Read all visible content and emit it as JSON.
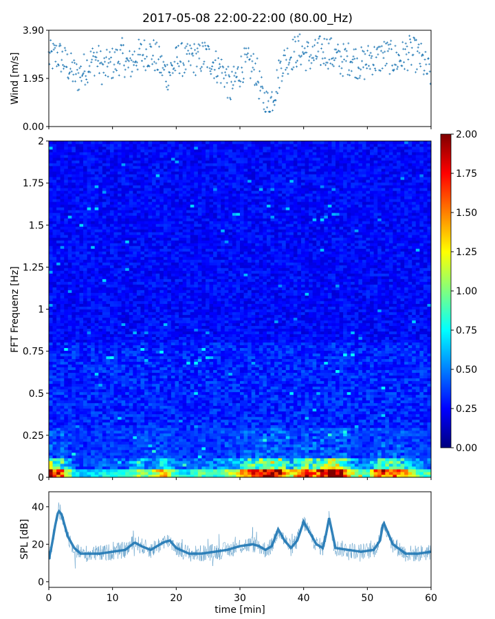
{
  "title": "2017-05-08 22:00-22:00 (80.00_Hz)",
  "chart_data": [
    {
      "id": "wind",
      "type": "scatter",
      "ylabel": "Wind [m/s]",
      "ylim": [
        0.0,
        3.9
      ],
      "yticks": [
        0.0,
        1.95,
        3.9
      ],
      "ytick_labels": [
        "0.00",
        "1.95",
        "3.90"
      ],
      "xlim": [
        0,
        60
      ],
      "marker": "+",
      "color": "#1f77b4",
      "series": [
        {
          "x": [
            0.5,
            1.5,
            2.5,
            3.5,
            4.5,
            5.5,
            6.5,
            7.5,
            8.5,
            9.5,
            10.5,
            11.5,
            12.5,
            13.5,
            14.5,
            15.5,
            16.5,
            17.5,
            18.5,
            19.5,
            20.5,
            21.5,
            22.5,
            23.5,
            24.5,
            25.5,
            26.5,
            27.5,
            28.5,
            29.5,
            30.5,
            31.5,
            32.5,
            33.5,
            34.5,
            35.5,
            36.5,
            37.5,
            38.5,
            39.5,
            40.5,
            41.5,
            42.5,
            43.5,
            44.5,
            45.5,
            46.5,
            47.5,
            48.5,
            49.5,
            50.5,
            51.5,
            52.5,
            53.5,
            54.5,
            55.5,
            56.5,
            57.5,
            58.5,
            59.5
          ],
          "y": [
            2.8,
            2.9,
            2.6,
            2.3,
            2.0,
            2.3,
            2.6,
            2.8,
            2.3,
            2.5,
            2.6,
            2.9,
            2.4,
            2.8,
            2.9,
            3.0,
            2.9,
            2.5,
            2.1,
            2.4,
            2.8,
            2.6,
            2.8,
            2.7,
            2.9,
            2.7,
            2.4,
            2.2,
            1.5,
            2.0,
            2.5,
            2.5,
            2.3,
            1.2,
            0.8,
            1.5,
            2.5,
            2.8,
            3.0,
            3.1,
            2.9,
            2.8,
            3.0,
            3.1,
            2.9,
            2.7,
            2.7,
            2.8,
            2.6,
            2.5,
            2.8,
            2.7,
            2.9,
            2.8,
            2.7,
            2.8,
            3.0,
            2.9,
            2.7,
            2.2
          ]
        }
      ]
    },
    {
      "id": "spectrogram",
      "type": "heatmap",
      "ylabel": "FFT Frequenz [Hz]",
      "ylim": [
        0,
        2
      ],
      "yticks": [
        0,
        0.25,
        0.5,
        0.75,
        1,
        1.25,
        1.5,
        1.75,
        2
      ],
      "ytick_labels": [
        "0",
        "0.25",
        "0.5",
        "0.75",
        "1",
        "1.25",
        "1.5",
        "1.75",
        "2"
      ],
      "xlim": [
        0,
        60
      ],
      "colormap": "jet",
      "colorbar": {
        "range": [
          0.0,
          2.0
        ],
        "ticks": [
          0.0,
          0.25,
          0.5,
          0.75,
          1.0,
          1.25,
          1.5,
          1.75,
          2.0
        ],
        "tick_labels": [
          "0.00",
          "0.25",
          "0.50",
          "0.75",
          "1.00",
          "1.25",
          "1.50",
          "1.75",
          "2.00"
        ]
      },
      "typical_level": 0.25,
      "band_intensity_time_min": [
        0,
        2,
        4,
        6,
        8,
        10,
        12,
        14,
        16,
        18,
        20,
        22,
        24,
        26,
        28,
        30,
        32,
        34,
        36,
        38,
        40,
        42,
        44,
        46,
        48,
        50,
        52,
        54,
        56,
        58,
        60
      ],
      "band_intensity_low_freq": [
        1.9,
        1.6,
        0.7,
        0.6,
        0.7,
        0.8,
        0.7,
        1.1,
        1.0,
        1.4,
        0.8,
        0.7,
        0.9,
        0.8,
        1.0,
        1.3,
        1.6,
        2.0,
        2.0,
        1.2,
        1.9,
        1.6,
        2.0,
        2.0,
        1.0,
        0.9,
        1.6,
        1.6,
        1.4,
        0.9,
        0.8
      ]
    },
    {
      "id": "spl",
      "type": "line",
      "xlabel": "time [min]",
      "ylabel": "SPL [dB]",
      "xlim": [
        0,
        60
      ],
      "ylim": [
        -3,
        48
      ],
      "xticks": [
        0,
        10,
        20,
        30,
        40,
        50,
        60
      ],
      "xtick_labels": [
        "0",
        "10",
        "20",
        "30",
        "40",
        "50",
        "60"
      ],
      "yticks": [
        0,
        20,
        40
      ],
      "ytick_labels": [
        "0",
        "20",
        "40"
      ],
      "color": "#1f77b4",
      "series": [
        {
          "x": [
            0,
            0.5,
            1,
            1.5,
            2,
            2.5,
            3,
            4,
            5,
            6,
            8,
            10,
            12,
            13.5,
            14.5,
            16,
            18,
            19,
            20,
            22,
            24,
            26,
            28,
            30,
            32,
            33,
            34,
            35,
            36,
            37,
            38,
            39,
            39.5,
            40,
            41,
            42,
            43,
            43.5,
            44,
            45,
            47,
            49,
            51,
            52,
            52.5,
            53,
            54,
            56,
            58,
            60
          ],
          "y": [
            12,
            20,
            30,
            38,
            36,
            30,
            24,
            18,
            15,
            15,
            15,
            16,
            17,
            21,
            19,
            17,
            21,
            22,
            18,
            15,
            15,
            16,
            17,
            19,
            20,
            19,
            17,
            19,
            28,
            22,
            18,
            22,
            27,
            32,
            26,
            20,
            18,
            25,
            34,
            18,
            17,
            16,
            17,
            22,
            32,
            28,
            20,
            15,
            15,
            16
          ]
        }
      ]
    }
  ]
}
